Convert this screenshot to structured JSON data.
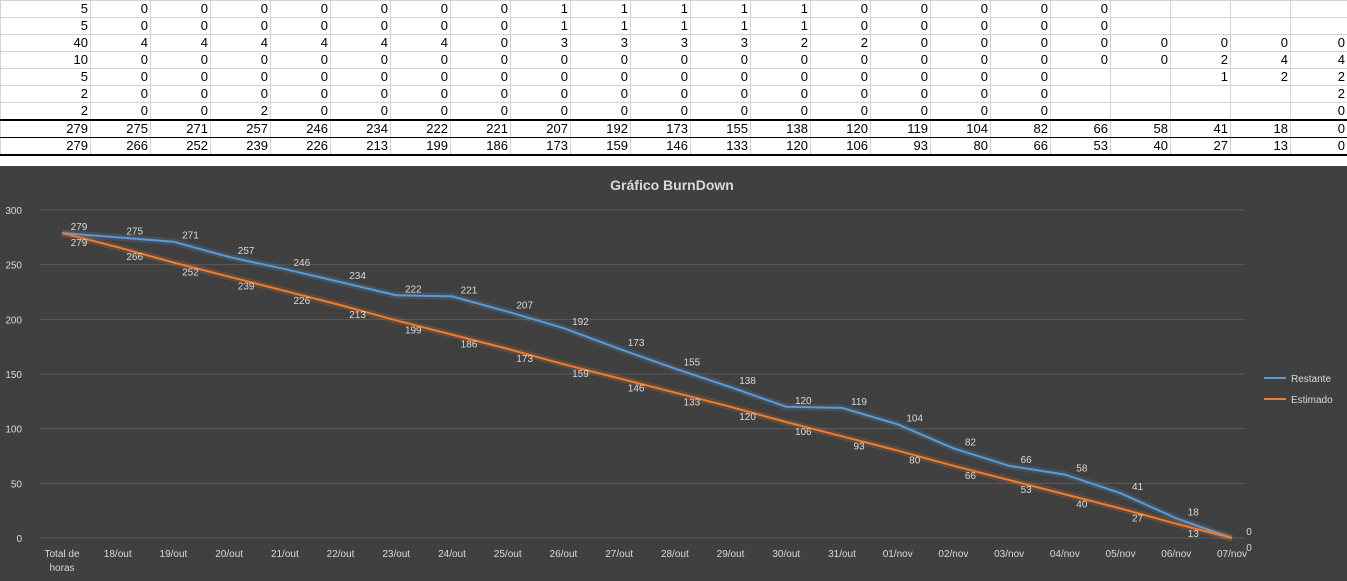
{
  "sheet": {
    "rows": [
      [
        "5",
        "0",
        "0",
        "0",
        "0",
        "0",
        "0",
        "0",
        "1",
        "1",
        "1",
        "1",
        "1",
        "0",
        "0",
        "0",
        "0",
        "0",
        "",
        "",
        "",
        ""
      ],
      [
        "5",
        "0",
        "0",
        "0",
        "0",
        "0",
        "0",
        "0",
        "1",
        "1",
        "1",
        "1",
        "1",
        "0",
        "0",
        "0",
        "0",
        "0",
        "",
        "",
        "",
        ""
      ],
      [
        "40",
        "4",
        "4",
        "4",
        "4",
        "4",
        "4",
        "0",
        "3",
        "3",
        "3",
        "3",
        "2",
        "2",
        "0",
        "0",
        "0",
        "0",
        "0",
        "0",
        "0",
        "0"
      ],
      [
        "10",
        "0",
        "0",
        "0",
        "0",
        "0",
        "0",
        "0",
        "0",
        "0",
        "0",
        "0",
        "0",
        "0",
        "0",
        "0",
        "0",
        "0",
        "0",
        "2",
        "4",
        "4"
      ],
      [
        "5",
        "0",
        "0",
        "0",
        "0",
        "0",
        "0",
        "0",
        "0",
        "0",
        "0",
        "0",
        "0",
        "0",
        "0",
        "0",
        "0",
        "",
        "",
        "1",
        "2",
        "2"
      ],
      [
        "2",
        "0",
        "0",
        "0",
        "0",
        "0",
        "0",
        "0",
        "0",
        "0",
        "0",
        "0",
        "0",
        "0",
        "0",
        "0",
        "0",
        "",
        "",
        "",
        "",
        "2"
      ],
      [
        "2",
        "0",
        "0",
        "2",
        "0",
        "0",
        "0",
        "0",
        "0",
        "0",
        "0",
        "0",
        "0",
        "0",
        "0",
        "0",
        "0",
        "",
        "",
        "",
        "",
        "0"
      ]
    ],
    "totals": [
      [
        "279",
        "275",
        "271",
        "257",
        "246",
        "234",
        "222",
        "221",
        "207",
        "192",
        "173",
        "155",
        "138",
        "120",
        "119",
        "104",
        "82",
        "66",
        "58",
        "41",
        "18",
        "0"
      ],
      [
        "279",
        "266",
        "252",
        "239",
        "226",
        "213",
        "199",
        "186",
        "173",
        "159",
        "146",
        "133",
        "120",
        "106",
        "93",
        "80",
        "66",
        "53",
        "40",
        "27",
        "13",
        "0"
      ]
    ]
  },
  "chart_data": {
    "type": "line",
    "title": "Gráfico BurnDown",
    "categories": [
      "Total de horas",
      "18/out",
      "19/out",
      "20/out",
      "21/out",
      "22/out",
      "23/out",
      "24/out",
      "25/out",
      "26/out",
      "27/out",
      "28/out",
      "29/out",
      "30/out",
      "31/out",
      "01/nov",
      "02/nov",
      "03/nov",
      "04/nov",
      "05/nov",
      "06/nov",
      "07/nov"
    ],
    "series": [
      {
        "name": "Restante",
        "color": "#5b9bd5",
        "values": [
          279,
          275,
          271,
          257,
          246,
          234,
          222,
          221,
          207,
          192,
          173,
          155,
          138,
          120,
          119,
          104,
          82,
          66,
          58,
          41,
          18,
          0
        ]
      },
      {
        "name": "Estimado",
        "color": "#ed7d31",
        "values": [
          279,
          266,
          252,
          239,
          226,
          213,
          199,
          186,
          173,
          159,
          146,
          133,
          120,
          106,
          93,
          80,
          66,
          53,
          40,
          27,
          13,
          0
        ]
      }
    ],
    "ylim": [
      0,
      300
    ],
    "yticks": [
      "0",
      "50",
      "100",
      "150",
      "200",
      "250",
      "300"
    ],
    "grid": true,
    "legend": "right",
    "background": "#404040"
  }
}
